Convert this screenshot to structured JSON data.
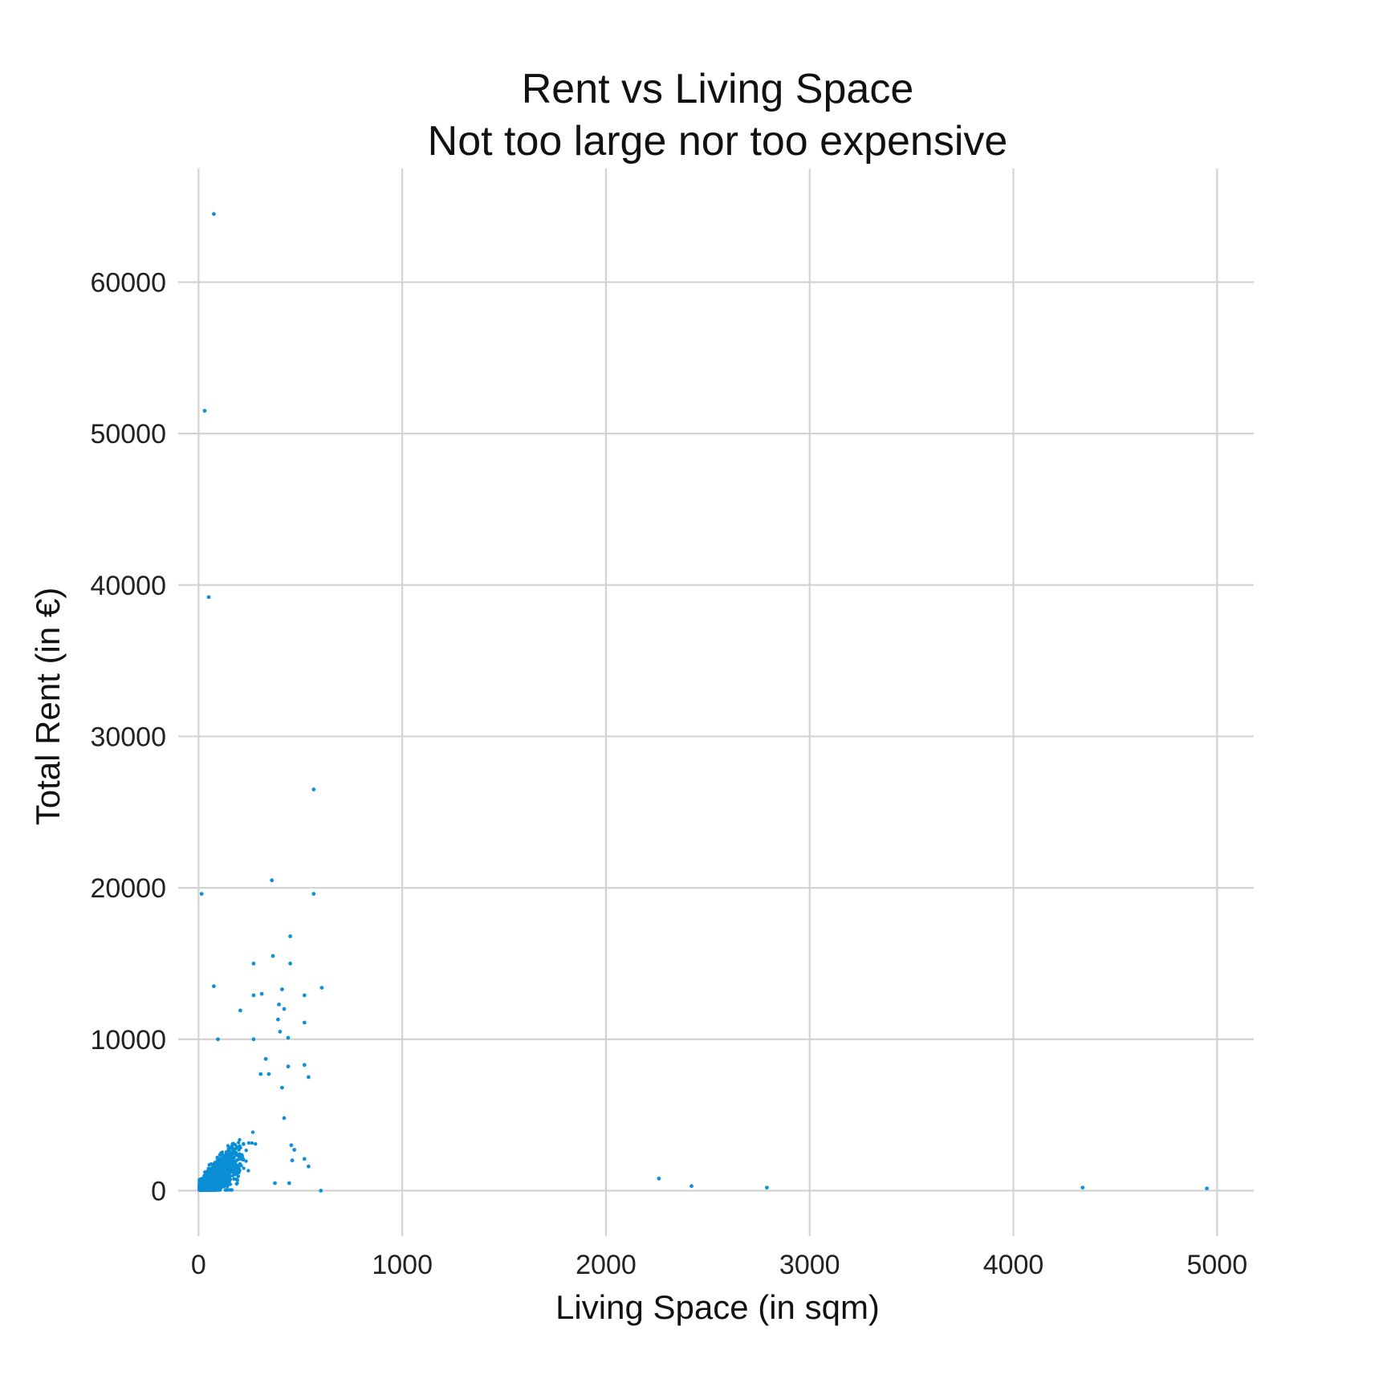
{
  "chart_data": {
    "type": "scatter",
    "title": "Rent vs Living Space",
    "subtitle": "Not too large nor too expensive",
    "xlabel": "Living Space (in sqm)",
    "ylabel": "Total Rent (in €)",
    "xlim": [
      -100,
      5180
    ],
    "ylim": [
      -3000,
      67500
    ],
    "x_ticks": [
      0,
      1000,
      2000,
      3000,
      4000,
      5000
    ],
    "y_ticks": [
      0,
      10000,
      20000,
      30000,
      40000,
      50000,
      60000
    ],
    "x_tick_labels": [
      "0",
      "1000",
      "2000",
      "3000",
      "4000",
      "5000"
    ],
    "y_tick_labels": [
      "0",
      "10000",
      "20000",
      "30000",
      "40000",
      "50000",
      "60000"
    ],
    "grid": true,
    "point_color": "#1090d8",
    "dense_cluster": {
      "x_range": [
        0,
        300
      ],
      "y_range": [
        0,
        7500
      ]
    },
    "points": [
      {
        "x": 75,
        "y": 64500
      },
      {
        "x": 30,
        "y": 51500
      },
      {
        "x": 50,
        "y": 39200
      },
      {
        "x": 565,
        "y": 26500
      },
      {
        "x": 360,
        "y": 20500
      },
      {
        "x": 565,
        "y": 19600
      },
      {
        "x": 15,
        "y": 19600
      },
      {
        "x": 450,
        "y": 16800
      },
      {
        "x": 365,
        "y": 15500
      },
      {
        "x": 270,
        "y": 15000
      },
      {
        "x": 450,
        "y": 15000
      },
      {
        "x": 75,
        "y": 13500
      },
      {
        "x": 605,
        "y": 13400
      },
      {
        "x": 410,
        "y": 13300
      },
      {
        "x": 310,
        "y": 13000
      },
      {
        "x": 270,
        "y": 12900
      },
      {
        "x": 520,
        "y": 12900
      },
      {
        "x": 395,
        "y": 12300
      },
      {
        "x": 420,
        "y": 12000
      },
      {
        "x": 205,
        "y": 11900
      },
      {
        "x": 390,
        "y": 11300
      },
      {
        "x": 520,
        "y": 11100
      },
      {
        "x": 400,
        "y": 10500
      },
      {
        "x": 440,
        "y": 10100
      },
      {
        "x": 95,
        "y": 10000
      },
      {
        "x": 270,
        "y": 10000
      },
      {
        "x": 330,
        "y": 8700
      },
      {
        "x": 520,
        "y": 8300
      },
      {
        "x": 440,
        "y": 8200
      },
      {
        "x": 540,
        "y": 7500
      },
      {
        "x": 305,
        "y": 7700
      },
      {
        "x": 345,
        "y": 7700
      },
      {
        "x": 410,
        "y": 6800
      },
      {
        "x": 420,
        "y": 4800
      },
      {
        "x": 455,
        "y": 3000
      },
      {
        "x": 470,
        "y": 2700
      },
      {
        "x": 520,
        "y": 2100
      },
      {
        "x": 540,
        "y": 1600
      },
      {
        "x": 460,
        "y": 2000
      },
      {
        "x": 445,
        "y": 500
      },
      {
        "x": 375,
        "y": 500
      },
      {
        "x": 600,
        "y": 0
      },
      {
        "x": 2260,
        "y": 800
      },
      {
        "x": 2420,
        "y": 300
      },
      {
        "x": 2790,
        "y": 200
      },
      {
        "x": 4340,
        "y": 200
      },
      {
        "x": 4950,
        "y": 150
      }
    ]
  }
}
